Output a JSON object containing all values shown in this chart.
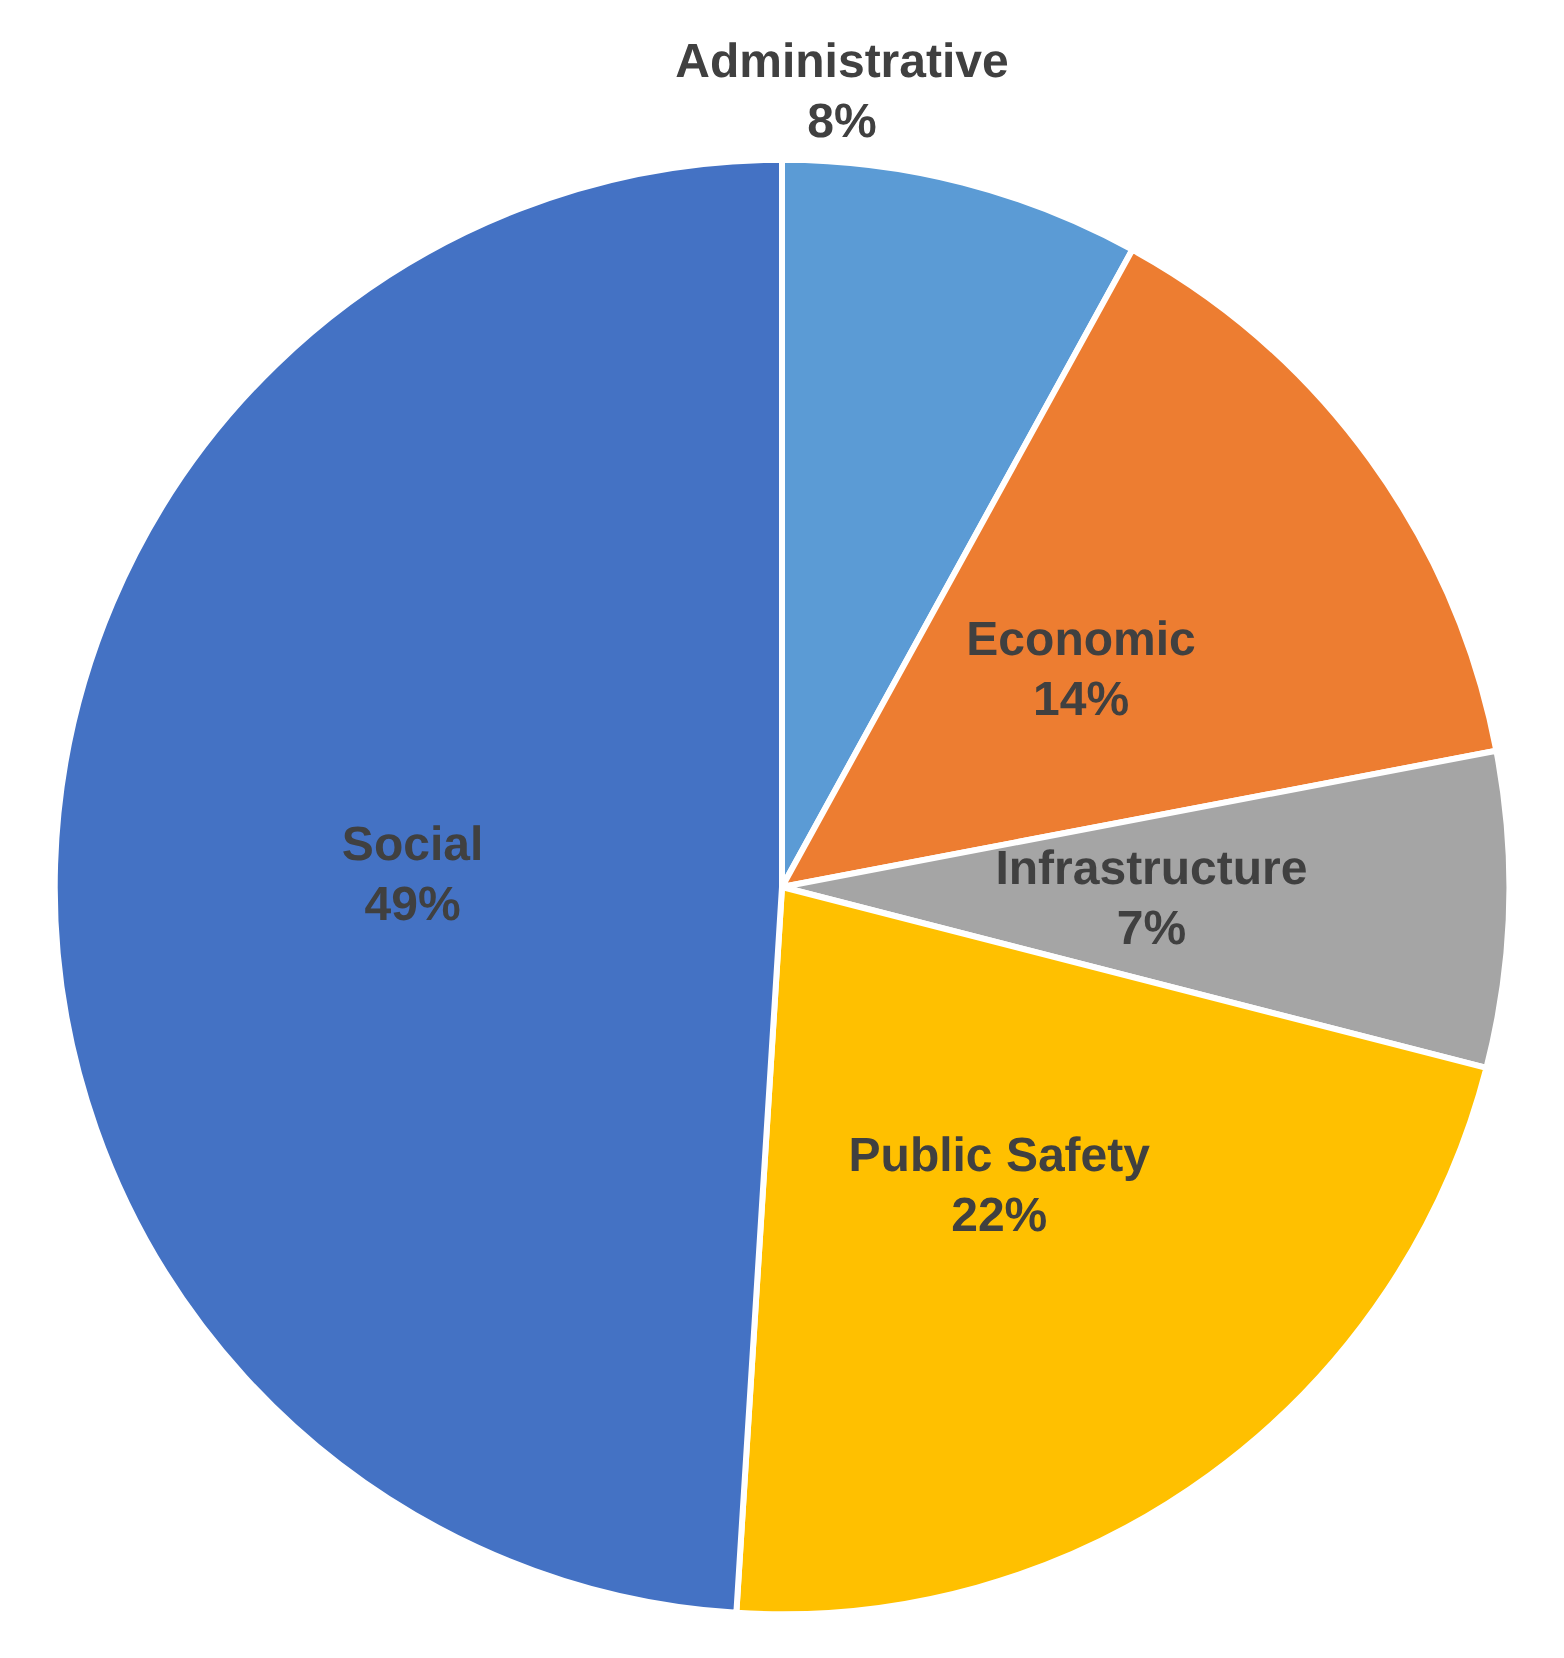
{
  "chart_data": {
    "type": "pie",
    "categories": [
      "Administrative",
      "Economic",
      "Infrastructure",
      "Public Safety",
      "Social"
    ],
    "values": [
      8,
      14,
      7,
      22,
      49
    ],
    "value_labels": [
      "8%",
      "14%",
      "7%",
      "22%",
      "49%"
    ],
    "colors": [
      "#5b9bd5",
      "#ed7d31",
      "#a5a5a5",
      "#ffc000",
      "#4472c4"
    ],
    "legend": false
  }
}
